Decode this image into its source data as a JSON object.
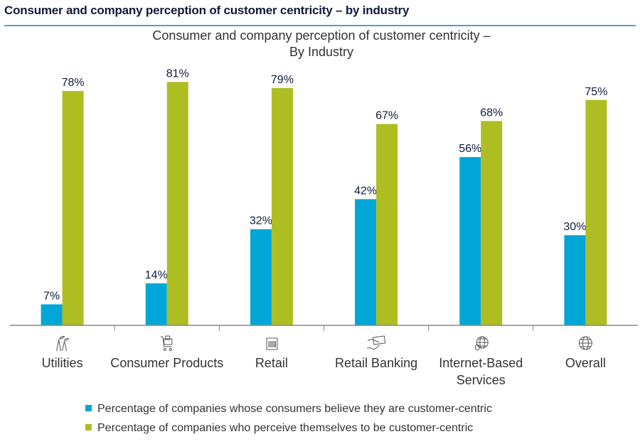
{
  "header": {
    "title": "Consumer and company perception of customer centricity – by industry",
    "rule_color": "#4aa3c4"
  },
  "chart_data": {
    "type": "bar",
    "title": [
      "Consumer and company perception of customer centricity –",
      "By Industry"
    ],
    "categories": [
      "Utilities",
      "Consumer Products",
      "Retail",
      "Retail Banking",
      "Internet-Based Services",
      "Overall"
    ],
    "category_lines": [
      [
        "Utilities"
      ],
      [
        "Consumer Products"
      ],
      [
        "Retail"
      ],
      [
        "Retail Banking"
      ],
      [
        "Internet-Based",
        "Services"
      ],
      [
        "Overall"
      ]
    ],
    "category_icons": [
      "power-plant-icon",
      "shopping-cart-icon",
      "barcode-icon",
      "hand-card-icon",
      "globe-mouse-icon",
      "globe-icon"
    ],
    "series": [
      {
        "name": "Percentage of companies whose consumers believe they are customer-centric",
        "color": "#00a7d6",
        "values": [
          7,
          14,
          32,
          42,
          56,
          30
        ],
        "labels": [
          "7%",
          "14%",
          "32%",
          "42%",
          "56%",
          "30%"
        ]
      },
      {
        "name": "Percentage of companies who perceive themselves to be customer-centric",
        "color": "#aebd22",
        "values": [
          78,
          81,
          79,
          67,
          68,
          75
        ],
        "labels": [
          "78%",
          "81%",
          "79%",
          "67%",
          "68%",
          "75%"
        ]
      }
    ],
    "ylim": [
      0,
      100
    ],
    "grid": false,
    "legend": "bottom"
  }
}
